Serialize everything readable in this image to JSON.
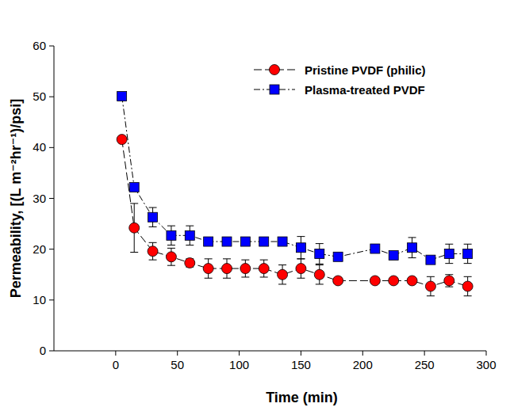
{
  "chart_data": {
    "type": "line",
    "x_label": "Time (min)",
    "y_label": "Permeability, [(L m⁻²hr⁻¹)/psi]",
    "xlim": [
      -50,
      300
    ],
    "xticks": [
      0,
      50,
      100,
      150,
      200,
      250,
      300
    ],
    "ylim": [
      0,
      60
    ],
    "yticks": [
      0,
      10,
      20,
      30,
      40,
      50,
      60
    ],
    "grid": false,
    "legend": "top-right",
    "series": [
      {
        "name": "Pristine PVDF (philic)",
        "color": "#ff0000",
        "marker": "circle",
        "line_style": "dashed",
        "x": [
          5,
          15,
          30,
          45,
          60,
          75,
          90,
          105,
          120,
          135,
          150,
          165,
          180,
          210,
          225,
          240,
          255,
          270,
          285
        ],
        "values": [
          41.6,
          24.2,
          19.6,
          18.5,
          17.3,
          16.2,
          16.2,
          16.2,
          16.2,
          15.0,
          16.2,
          15.0,
          13.8,
          13.8,
          13.8,
          13.8,
          12.7,
          13.8,
          12.7
        ],
        "errors": [
          0.5,
          4.8,
          1.7,
          1.7,
          0.8,
          1.9,
          1.9,
          1.7,
          1.7,
          1.9,
          1.9,
          1.9,
          0.5,
          0.5,
          0.5,
          0.5,
          1.9,
          1.2,
          1.9
        ]
      },
      {
        "name": "Plasma-treated PVDF",
        "color": "#0000ff",
        "marker": "square",
        "line_style": "dashdot",
        "x": [
          5,
          15,
          30,
          45,
          60,
          75,
          90,
          105,
          120,
          135,
          150,
          165,
          180,
          210,
          225,
          240,
          255,
          270,
          285
        ],
        "values": [
          50.1,
          32.2,
          26.3,
          22.7,
          22.7,
          21.5,
          21.5,
          21.5,
          21.5,
          21.5,
          20.3,
          19.1,
          18.5,
          20.1,
          18.8,
          20.3,
          17.9,
          19.1,
          19.1
        ],
        "errors": [
          0.3,
          0.5,
          1.9,
          1.9,
          1.9,
          0.5,
          0.5,
          0.5,
          0.5,
          0.5,
          2.2,
          2.0,
          0.5,
          0.5,
          0.5,
          2.0,
          0.5,
          1.9,
          1.9
        ]
      }
    ]
  }
}
